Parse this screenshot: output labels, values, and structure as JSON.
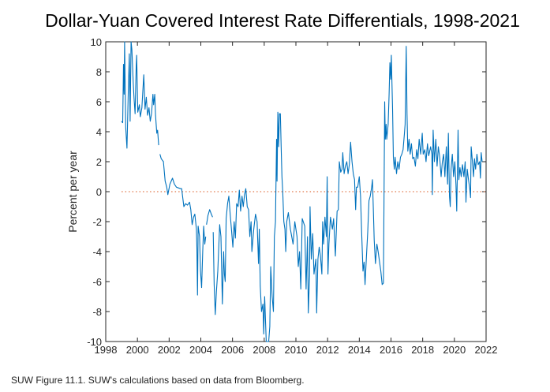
{
  "chart_data": {
    "type": "line",
    "title": "Dollar-Yuan Covered Interest Rate Differentials, 1998-2021",
    "xlabel": "",
    "ylabel": "Percent per year",
    "xlim": [
      1998,
      2022
    ],
    "ylim": [
      -10,
      10
    ],
    "xticks": [
      1998,
      2000,
      2002,
      2004,
      2006,
      2008,
      2010,
      2012,
      2014,
      2016,
      2018,
      2020,
      2022
    ],
    "yticks": [
      -10,
      -8,
      -6,
      -4,
      -2,
      0,
      2,
      4,
      6,
      8,
      10
    ],
    "grid": false,
    "reference_line": {
      "y": 0,
      "style": "dotted",
      "color": "#d95319"
    },
    "line_color": "#0072bd",
    "series": [
      {
        "points": [
          [
            1998.99,
            4.7
          ],
          [
            1999.07,
            4.6
          ],
          [
            1999.12,
            8.5
          ],
          [
            1999.16,
            6.5
          ],
          [
            1999.19,
            10
          ],
          [
            1999.26,
            4.3
          ],
          [
            1999.34,
            2.9
          ],
          [
            1999.42,
            6.5
          ],
          [
            1999.49,
            9.2
          ],
          [
            1999.54,
            4.7
          ],
          [
            1999.6,
            10
          ],
          [
            1999.65,
            9.5
          ],
          [
            1999.74,
            7.2
          ],
          [
            1999.79,
            6.2
          ],
          [
            1999.85,
            5.2
          ],
          [
            1999.92,
            8.4
          ],
          [
            1999.95,
            9.1
          ],
          [
            2000.02,
            5.3
          ],
          [
            2000.12,
            5.8
          ],
          [
            2000.18,
            5.0
          ],
          [
            2000.28,
            5.6
          ],
          [
            2000.4,
            7.8
          ],
          [
            2000.48,
            5.5
          ],
          [
            2000.56,
            6.3
          ],
          [
            2000.64,
            5.1
          ],
          [
            2000.73,
            5.6
          ],
          [
            2000.81,
            4.7
          ],
          [
            2000.89,
            5.2
          ],
          [
            2000.98,
            6.5
          ],
          [
            2001.02,
            5.8
          ],
          [
            2001.09,
            6.5
          ],
          [
            2001.14,
            5.1
          ],
          [
            2001.22,
            3.9
          ],
          [
            2001.27,
            4.1
          ],
          [
            2001.34,
            3.1
          ],
          null,
          [
            2001.42,
            2.5
          ],
          [
            2001.5,
            2.2
          ],
          [
            2001.64,
            2.0
          ],
          [
            2001.75,
            0.7
          ],
          [
            2001.85,
            0.3
          ],
          [
            2001.92,
            -0.2
          ],
          [
            2002.05,
            0.5
          ],
          [
            2002.21,
            0.9
          ],
          [
            2002.33,
            0.5
          ],
          [
            2002.46,
            0.3
          ],
          [
            2002.71,
            0.2
          ],
          [
            2002.79,
            0.2
          ],
          [
            2002.93,
            -1.0
          ],
          [
            2003.04,
            -0.8
          ],
          [
            2003.16,
            -0.9
          ],
          [
            2003.29,
            -0.7
          ],
          [
            2003.37,
            -1.2
          ],
          [
            2003.45,
            -2.2
          ],
          [
            2003.54,
            -1.7
          ],
          [
            2003.62,
            -1.5
          ],
          [
            2003.72,
            -2.5
          ],
          [
            2003.75,
            -3.7
          ],
          [
            2003.79,
            -6.9
          ],
          [
            2003.83,
            -2.3
          ],
          [
            2003.92,
            -3.0
          ],
          [
            2003.98,
            -5.3
          ],
          [
            2004.05,
            -6.4
          ],
          [
            2004.12,
            -4.0
          ],
          [
            2004.18,
            -2.3
          ],
          [
            2004.25,
            -3.5
          ],
          [
            2004.31,
            -3.0
          ],
          null,
          [
            2004.36,
            -2.2
          ],
          [
            2004.45,
            -1.6
          ],
          [
            2004.56,
            -1.2
          ],
          [
            2004.66,
            -1.5
          ],
          [
            2004.74,
            -1.7
          ],
          null,
          [
            2004.78,
            -2.7
          ],
          [
            2004.84,
            -6.2
          ],
          [
            2004.91,
            -8.2
          ],
          [
            2004.98,
            -6.7
          ],
          [
            2005.07,
            -5.3
          ],
          [
            2005.19,
            -2.2
          ],
          [
            2005.27,
            -3.0
          ],
          [
            2005.36,
            -7.5
          ],
          [
            2005.44,
            -4.0
          ],
          [
            2005.49,
            -5.5
          ],
          [
            2005.54,
            -6.0
          ],
          [
            2005.6,
            -1.8
          ],
          [
            2005.69,
            -0.8
          ],
          [
            2005.77,
            -0.3
          ],
          [
            2005.85,
            -1.5
          ],
          [
            2005.93,
            -2.5
          ],
          [
            2006.02,
            -3.7
          ],
          [
            2006.1,
            -2.0
          ],
          [
            2006.18,
            -3.1
          ],
          [
            2006.26,
            -0.8
          ],
          [
            2006.35,
            -1.0
          ],
          [
            2006.43,
            0.1
          ],
          [
            2006.51,
            -1.3
          ],
          [
            2006.6,
            -0.3
          ],
          [
            2006.68,
            -1.0
          ],
          [
            2006.76,
            -0.2
          ],
          [
            2006.84,
            0.2
          ],
          [
            2006.93,
            -1.0
          ],
          [
            2007.01,
            -1.2
          ],
          [
            2007.09,
            -3.0
          ],
          [
            2007.17,
            -2.0
          ],
          [
            2007.22,
            -4.0
          ],
          [
            2007.34,
            -2.5
          ],
          [
            2007.45,
            -1.5
          ],
          [
            2007.55,
            -2.0
          ],
          [
            2007.64,
            -4.8
          ],
          [
            2007.69,
            -2.5
          ],
          [
            2007.75,
            -6.3
          ],
          [
            2007.83,
            -8.0
          ],
          [
            2007.92,
            -7.5
          ],
          [
            2007.97,
            -9.5
          ],
          [
            2008.03,
            -7.0
          ],
          [
            2008.08,
            -8.5
          ],
          [
            2008.13,
            -10
          ],
          [
            2008.28,
            -10
          ],
          [
            2008.35,
            -9.0
          ],
          [
            2008.41,
            -5.0
          ],
          [
            2008.5,
            -7.0
          ],
          [
            2008.58,
            -8.0
          ],
          [
            2008.64,
            -3.0
          ],
          [
            2008.71,
            -2.0
          ],
          [
            2008.78,
            3.5
          ],
          [
            2008.81,
            0.7
          ],
          [
            2008.86,
            5.3
          ],
          [
            2008.91,
            3.0
          ],
          [
            2008.96,
            5.2
          ],
          [
            2009.02,
            5.2
          ],
          [
            2009.07,
            3.0
          ],
          [
            2009.12,
            1.0
          ],
          [
            2009.17,
            0.0
          ],
          [
            2009.24,
            -2.0
          ],
          [
            2009.31,
            -2.5
          ],
          [
            2009.36,
            -4.0
          ],
          [
            2009.42,
            -2.0
          ],
          [
            2009.52,
            -1.4
          ],
          [
            2009.65,
            -2.5
          ],
          [
            2009.82,
            -3.5
          ],
          [
            2009.93,
            -2.0
          ],
          [
            2010.07,
            -3.0
          ],
          [
            2010.15,
            -5.0
          ],
          [
            2010.23,
            -4.0
          ],
          [
            2010.31,
            -6.5
          ],
          [
            2010.4,
            -1.8
          ],
          [
            2010.56,
            -2.3
          ],
          [
            2010.64,
            -6.5
          ],
          [
            2010.73,
            -3.0
          ],
          [
            2010.78,
            -8.1
          ],
          [
            2010.86,
            -5.6
          ],
          [
            2010.89,
            -1.0
          ],
          [
            2010.97,
            -4.5
          ],
          [
            2011.06,
            -2.8
          ],
          [
            2011.14,
            -5.5
          ],
          [
            2011.26,
            -4.5
          ],
          [
            2011.31,
            -8.1
          ],
          [
            2011.39,
            -4.5
          ],
          [
            2011.47,
            -3.7
          ],
          [
            2011.55,
            -4.3
          ],
          [
            2011.64,
            -5.5
          ],
          [
            2011.69,
            -2.0
          ],
          [
            2011.75,
            -3.5
          ],
          [
            2011.83,
            -1.7
          ],
          [
            2011.92,
            -3.0
          ],
          [
            2011.97,
            1.0
          ],
          [
            2012.02,
            -5.5
          ],
          [
            2012.08,
            -3.5
          ],
          [
            2012.18,
            -1.7
          ],
          [
            2012.3,
            -2.5
          ],
          [
            2012.38,
            -1.8
          ],
          [
            2012.49,
            -4.3
          ],
          [
            2012.6,
            -1.3
          ],
          [
            2012.68,
            -1.2
          ],
          [
            2012.74,
            2.0
          ],
          [
            2012.83,
            1.3
          ],
          [
            2012.91,
            1.5
          ],
          [
            2012.96,
            2.6
          ],
          [
            2013.04,
            1.2
          ],
          [
            2013.12,
            1.7
          ],
          [
            2013.21,
            2.0
          ],
          [
            2013.29,
            1.2
          ],
          [
            2013.37,
            1.8
          ],
          [
            2013.45,
            3.3
          ],
          [
            2013.54,
            2.0
          ],
          [
            2013.62,
            1.2
          ],
          [
            2013.7,
            0.8
          ],
          [
            2013.77,
            -1.2
          ],
          [
            2013.82,
            0.3
          ],
          [
            2013.9,
            0.3
          ],
          [
            2014.0,
            1.0
          ],
          [
            2014.08,
            -0.3
          ],
          [
            2014.15,
            -2.7
          ],
          [
            2014.23,
            -5.3
          ],
          [
            2014.3,
            -4.7
          ],
          [
            2014.36,
            -6.2
          ],
          [
            2014.45,
            -4.3
          ],
          [
            2014.53,
            -2.7
          ],
          [
            2014.61,
            -0.6
          ],
          [
            2014.69,
            -0.3
          ],
          [
            2014.78,
            0.3
          ],
          [
            2014.83,
            0.8
          ],
          [
            2014.89,
            -1.3
          ],
          [
            2014.94,
            -3.2
          ],
          [
            2015.02,
            -4.8
          ],
          [
            2015.11,
            -3.5
          ],
          [
            2015.19,
            -4.0
          ],
          [
            2015.36,
            -5.3
          ],
          [
            2015.44,
            -6.2
          ],
          [
            2015.52,
            -6.1
          ],
          [
            2015.6,
            6.0
          ],
          [
            2015.64,
            3.5
          ],
          [
            2015.69,
            4.5
          ],
          [
            2015.73,
            3.5
          ],
          [
            2015.82,
            4.5
          ],
          [
            2015.88,
            6.5
          ],
          [
            2015.93,
            8.6
          ],
          [
            2015.98,
            7.5
          ],
          [
            2016.02,
            9.1
          ],
          [
            2016.1,
            5.5
          ],
          [
            2016.15,
            2.3
          ],
          [
            2016.21,
            1.5
          ],
          [
            2016.26,
            2.3
          ],
          [
            2016.35,
            1.2
          ],
          [
            2016.43,
            2.0
          ],
          [
            2016.51,
            1.5
          ],
          [
            2016.6,
            2.3
          ],
          [
            2016.68,
            2.5
          ],
          [
            2016.76,
            2.8
          ],
          [
            2016.84,
            3.8
          ],
          [
            2016.89,
            4.5
          ],
          [
            2016.96,
            9.7
          ],
          [
            2017.01,
            5.2
          ],
          [
            2017.06,
            2.7
          ],
          [
            2017.14,
            3.5
          ],
          [
            2017.21,
            2.5
          ],
          [
            2017.29,
            3.2
          ],
          [
            2017.37,
            2.2
          ],
          [
            2017.45,
            2.3
          ],
          [
            2017.54,
            1.7
          ],
          [
            2017.62,
            2.8
          ],
          [
            2017.7,
            2.2
          ],
          [
            2017.78,
            3.5
          ],
          [
            2017.87,
            2.5
          ],
          [
            2017.97,
            3.9
          ],
          [
            2018.03,
            2.5
          ],
          [
            2018.13,
            2.8
          ],
          [
            2018.21,
            2.0
          ],
          [
            2018.3,
            3.2
          ],
          [
            2018.38,
            2.4
          ],
          [
            2018.5,
            3.0
          ],
          [
            2018.58,
            2.5
          ],
          [
            2018.61,
            -0.2
          ],
          [
            2018.66,
            4.1
          ],
          [
            2018.74,
            2.0
          ],
          [
            2018.83,
            3.5
          ],
          [
            2018.91,
            1.7
          ],
          [
            2018.99,
            3.0
          ],
          [
            2019.07,
            2.3
          ],
          [
            2019.16,
            1.0
          ],
          [
            2019.24,
            2.0
          ],
          [
            2019.32,
            2.5
          ],
          [
            2019.4,
            1.0
          ],
          [
            2019.49,
            3.0
          ],
          [
            2019.57,
            0.5
          ],
          [
            2019.62,
            3.9
          ],
          [
            2019.69,
            -0.3
          ],
          [
            2019.74,
            -1.0
          ],
          [
            2019.79,
            1.5
          ],
          [
            2019.87,
            2.5
          ],
          [
            2019.95,
            1.0
          ],
          [
            2020.03,
            2.0
          ],
          [
            2020.1,
            0.5
          ],
          [
            2020.15,
            -1.3
          ],
          [
            2020.23,
            4.1
          ],
          [
            2020.28,
            0.8
          ],
          [
            2020.35,
            1.6
          ],
          [
            2020.43,
            1.0
          ],
          [
            2020.51,
            1.8
          ],
          [
            2020.6,
            1.0
          ],
          [
            2020.68,
            2.0
          ],
          [
            2020.73,
            -0.7
          ],
          [
            2020.81,
            1.5
          ],
          [
            2020.89,
            0.8
          ],
          [
            2020.97,
            0.2
          ],
          [
            2021.02,
            -0.4
          ],
          [
            2021.06,
            3.0
          ],
          [
            2021.14,
            2.0
          ],
          [
            2021.21,
            1.0
          ],
          [
            2021.27,
            2.2
          ],
          [
            2021.34,
            1.5
          ],
          [
            2021.42,
            2.5
          ],
          [
            2021.5,
            1.8
          ],
          [
            2021.59,
            2.0
          ],
          [
            2021.64,
            0.9
          ],
          [
            2021.69,
            2.6
          ],
          [
            2021.75,
            2.0
          ]
        ]
      }
    ]
  },
  "footnote": "SUW Figure 11.1. SUW's calculations based on data from Bloomberg."
}
